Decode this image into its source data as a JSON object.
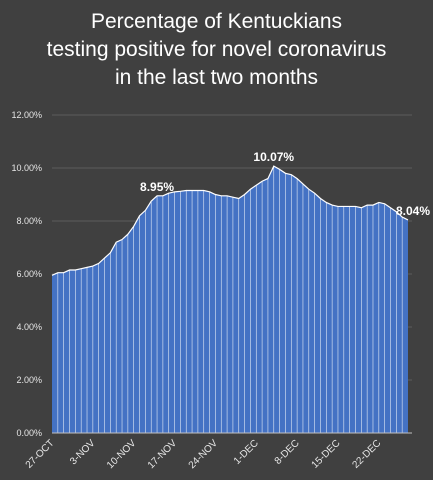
{
  "chart_data": {
    "type": "area",
    "title_lines": [
      "Percentage of Kentuckians",
      "testing positive for novel coronavirus",
      "in the last two months"
    ],
    "xlabel": "",
    "ylabel": "",
    "ylim": [
      0,
      12
    ],
    "yticks": [
      0,
      2,
      4,
      6,
      8,
      10,
      12
    ],
    "ytick_labels": [
      "0.00%",
      "2.00%",
      "4.00%",
      "6.00%",
      "8.00%",
      "10.00%",
      "12.00%"
    ],
    "xtick_labels": [
      "27-OCT",
      "3-NOV",
      "10-NOV",
      "17-NOV",
      "24-NOV",
      "1-DEC",
      "8-DEC",
      "15-DEC",
      "22-DEC"
    ],
    "xtick_index": [
      0,
      7,
      14,
      21,
      28,
      35,
      42,
      49,
      56
    ],
    "grid": true,
    "color": "#4472C4",
    "x_start": "27-OCT",
    "values": [
      5.95,
      6.05,
      6.05,
      6.15,
      6.15,
      6.2,
      6.25,
      6.3,
      6.4,
      6.6,
      6.8,
      7.2,
      7.3,
      7.5,
      7.8,
      8.2,
      8.4,
      8.75,
      8.95,
      8.95,
      9.05,
      9.1,
      9.12,
      9.15,
      9.15,
      9.15,
      9.15,
      9.1,
      9.0,
      8.95,
      8.95,
      8.9,
      8.85,
      9.0,
      9.2,
      9.35,
      9.5,
      9.6,
      10.07,
      9.95,
      9.8,
      9.75,
      9.6,
      9.4,
      9.2,
      9.05,
      8.85,
      8.7,
      8.6,
      8.55,
      8.55,
      8.55,
      8.55,
      8.5,
      8.6,
      8.6,
      8.7,
      8.65,
      8.5,
      8.35,
      8.15,
      8.04
    ],
    "data_labels": [
      {
        "index": 18,
        "text": "8.95%"
      },
      {
        "index": 38,
        "text": "10.07%"
      },
      {
        "index": 61,
        "text": "8.04%"
      }
    ]
  }
}
